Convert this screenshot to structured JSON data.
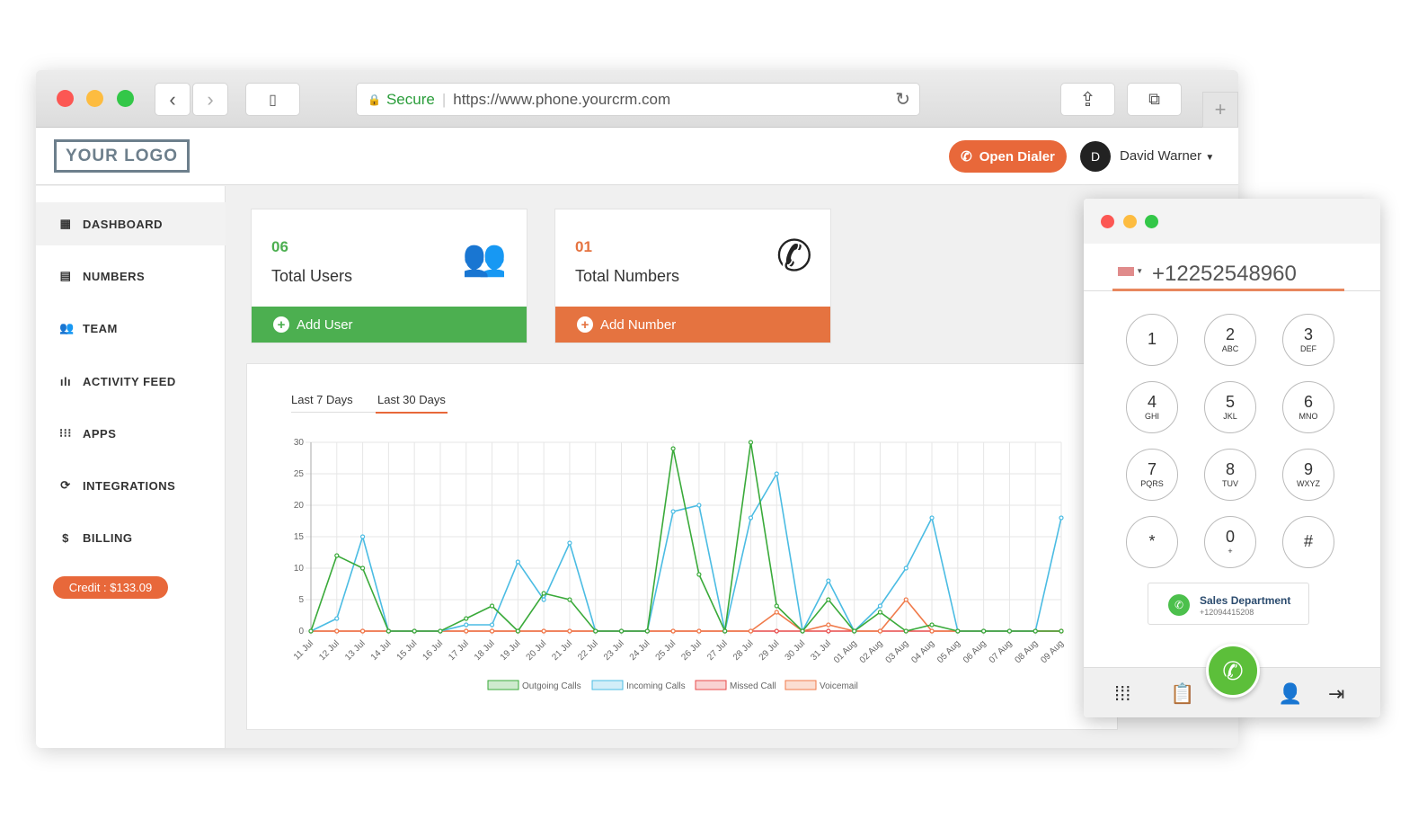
{
  "browser": {
    "secure_label": "Secure",
    "url": "https://www.phone.yourcrm.com"
  },
  "header": {
    "logo": "YOUR LOGO",
    "open_dialer": "Open Dialer",
    "avatar_initial": "D",
    "user_name": "David Warner"
  },
  "sidebar": {
    "items": [
      {
        "label": "DASHBOARD",
        "icon": "dashboard-icon"
      },
      {
        "label": "NUMBERS",
        "icon": "numbers-icon"
      },
      {
        "label": "TEAM",
        "icon": "team-icon"
      },
      {
        "label": "ACTIVITY FEED",
        "icon": "activity-icon"
      },
      {
        "label": "APPS",
        "icon": "apps-icon"
      },
      {
        "label": "INTEGRATIONS",
        "icon": "sync-icon"
      },
      {
        "label": "BILLING",
        "icon": "dollar-icon"
      }
    ],
    "credit": "Credit : $133.09"
  },
  "cards": [
    {
      "count": "06",
      "label": "Total Users",
      "action": "Add User",
      "color": "#4caf50"
    },
    {
      "count": "01",
      "label": "Total Numbers",
      "action": "Add Number",
      "color": "#e57340"
    }
  ],
  "tabs": [
    "Last 7 Days",
    "Last 30 Days"
  ],
  "chart_data": {
    "type": "line",
    "ylim": [
      0,
      30
    ],
    "yticks": [
      0,
      5,
      10,
      15,
      20,
      25,
      30
    ],
    "grid": true,
    "legend": "bottom",
    "categories": [
      "11 Jul",
      "12 Jul",
      "13 Jul",
      "14 Jul",
      "15 Jul",
      "16 Jul",
      "17 Jul",
      "18 Jul",
      "19 Jul",
      "20 Jul",
      "21 Jul",
      "22 Jul",
      "23 Jul",
      "24 Jul",
      "25 Jul",
      "26 Jul",
      "27 Jul",
      "28 Jul",
      "29 Jul",
      "30 Jul",
      "31 Jul",
      "01 Aug",
      "02 Aug",
      "03 Aug",
      "04 Aug",
      "05 Aug",
      "06 Aug",
      "07 Aug",
      "08 Aug",
      "09 Aug"
    ],
    "series": [
      {
        "name": "Outgoing Calls",
        "color": "#3aaa3a",
        "values": [
          0,
          12,
          10,
          0,
          0,
          0,
          2,
          4,
          0,
          6,
          5,
          0,
          0,
          0,
          29,
          9,
          0,
          30,
          4,
          0,
          5,
          0,
          3,
          0,
          1,
          0,
          0,
          0,
          0,
          0
        ]
      },
      {
        "name": "Incoming Calls",
        "color": "#4bbce3",
        "values": [
          0,
          2,
          15,
          0,
          0,
          0,
          1,
          1,
          11,
          5,
          14,
          0,
          0,
          0,
          19,
          20,
          0,
          18,
          25,
          0,
          8,
          0,
          4,
          10,
          18,
          0,
          0,
          0,
          0,
          18
        ]
      },
      {
        "name": "Missed Call",
        "color": "#e84a4a",
        "values": [
          0,
          0,
          0,
          0,
          0,
          0,
          0,
          0,
          0,
          0,
          0,
          0,
          0,
          0,
          0,
          0,
          0,
          0,
          0,
          0,
          0,
          0,
          0,
          0,
          0,
          0,
          0,
          0,
          0,
          0
        ]
      },
      {
        "name": "Voicemail",
        "color": "#f07a4a",
        "values": [
          0,
          0,
          0,
          0,
          0,
          0,
          0,
          0,
          0,
          0,
          0,
          0,
          0,
          0,
          0,
          0,
          0,
          0,
          3,
          0,
          1,
          0,
          0,
          5,
          0,
          0,
          0,
          0,
          0,
          0
        ]
      }
    ]
  },
  "dialer": {
    "number": "+12252548960",
    "keys": [
      {
        "d": "1",
        "l": ""
      },
      {
        "d": "2",
        "l": "ABC"
      },
      {
        "d": "3",
        "l": "DEF"
      },
      {
        "d": "4",
        "l": "GHI"
      },
      {
        "d": "5",
        "l": "JKL"
      },
      {
        "d": "6",
        "l": "MNO"
      },
      {
        "d": "7",
        "l": "PQRS"
      },
      {
        "d": "8",
        "l": "TUV"
      },
      {
        "d": "9",
        "l": "WXYZ"
      },
      {
        "d": "*",
        "l": ""
      },
      {
        "d": "0",
        "l": "+"
      },
      {
        "d": "#",
        "l": ""
      }
    ],
    "caller_name": "Sales Department",
    "caller_number": "+12094415208"
  }
}
